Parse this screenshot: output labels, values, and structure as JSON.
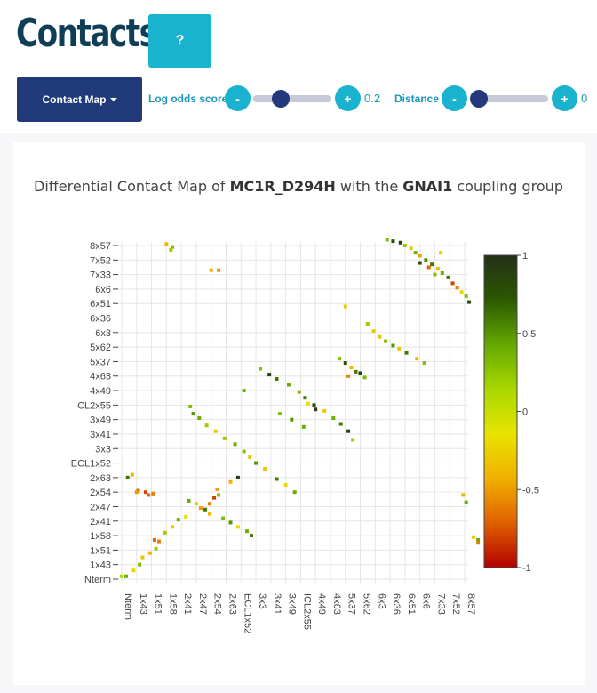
{
  "header": {
    "title": "Contacts",
    "help_label": "?"
  },
  "controls": {
    "dropdown_label": "Contact Map",
    "log_odds": {
      "label": "Log odds score",
      "minus": "-",
      "plus": "+",
      "value": "0.2",
      "fraction": 0.2
    },
    "distance": {
      "label": "Distance",
      "minus": "-",
      "plus": "+",
      "value": "0",
      "fraction": 0.0
    }
  },
  "subtitle": {
    "prefix": "Differential Contact Map of ",
    "receptor": "MC1R_D294H",
    "middle": " with the ",
    "group": "GNAI1",
    "suffix": " coupling group"
  },
  "chart_data": {
    "type": "heatmap",
    "x_labels": [
      "Nterm",
      "1x43",
      "1x51",
      "1x58",
      "2x41",
      "2x47",
      "2x54",
      "2x63",
      "ECL1x52",
      "3x3",
      "3x41",
      "3x49",
      "ICL2x55",
      "4x49",
      "4x63",
      "5x37",
      "5x62",
      "6x3",
      "6x36",
      "6x51",
      "6x6",
      "7x33",
      "7x52",
      "8x57"
    ],
    "y_labels": [
      "Nterm",
      "1x43",
      "1x51",
      "1x58",
      "2x41",
      "2x47",
      "2x54",
      "2x63",
      "ECL1x52",
      "3x3",
      "3x41",
      "3x49",
      "ICL2x55",
      "4x49",
      "4x63",
      "5x37",
      "5x62",
      "6x3",
      "6x36",
      "6x51",
      "6x6",
      "7x33",
      "7x52",
      "8x57"
    ],
    "colorscale": [
      "#b20000",
      "#e06000",
      "#f0b000",
      "#e8e400",
      "#a8d800",
      "#64a800",
      "#2c5800",
      "#243018"
    ],
    "zrange": [
      -1,
      1
    ],
    "colorbar_ticks": [
      "1",
      "0.5",
      "0",
      "-0.5",
      "-1"
    ],
    "cells": [
      [
        0.0,
        0.2,
        0.1
      ],
      [
        0.3,
        0.2,
        0.4
      ],
      [
        0.8,
        0.6,
        -0.2
      ],
      [
        1.2,
        1.0,
        0.3
      ],
      [
        1.4,
        1.5,
        -0.3
      ],
      [
        1.9,
        1.8,
        -0.4
      ],
      [
        2.3,
        2.1,
        0.2
      ],
      [
        2.2,
        2.7,
        -0.7
      ],
      [
        2.5,
        2.6,
        -0.6
      ],
      [
        2.9,
        3.2,
        0.2
      ],
      [
        3.4,
        3.6,
        -0.3
      ],
      [
        3.8,
        4.1,
        0.4
      ],
      [
        4.3,
        4.3,
        -0.2
      ],
      [
        5.3,
        4.9,
        -0.5
      ],
      [
        5.9,
        5.2,
        -0.6
      ],
      [
        6.2,
        5.6,
        -0.8
      ],
      [
        6.5,
        5.8,
        0.3
      ],
      [
        6.4,
        6.2,
        -0.5
      ],
      [
        7.3,
        6.7,
        -0.4
      ],
      [
        7.8,
        7.0,
        0.9
      ],
      [
        0.4,
        7.0,
        0.6
      ],
      [
        0.7,
        7.2,
        -0.4
      ],
      [
        1.1,
        6.1,
        -0.7
      ],
      [
        1.6,
        6.0,
        -0.8
      ],
      [
        2.1,
        5.9,
        -0.6
      ],
      [
        1.8,
        5.8,
        -0.7
      ],
      [
        1.0,
        6.0,
        -0.5
      ],
      [
        4.5,
        5.4,
        0.4
      ],
      [
        5.0,
        5.2,
        -0.3
      ],
      [
        5.6,
        4.8,
        0.6
      ],
      [
        5.9,
        4.5,
        -0.4
      ],
      [
        6.8,
        4.2,
        0.3
      ],
      [
        7.3,
        3.9,
        0.5
      ],
      [
        7.8,
        3.6,
        -0.2
      ],
      [
        8.4,
        3.3,
        0.4
      ],
      [
        8.7,
        3.0,
        0.6
      ],
      [
        4.6,
        11.9,
        0.3
      ],
      [
        4.8,
        11.4,
        0.5
      ],
      [
        5.2,
        11.1,
        0.4
      ],
      [
        5.7,
        10.6,
        0.2
      ],
      [
        6.3,
        10.2,
        -0.3
      ],
      [
        6.9,
        9.7,
        0.2
      ],
      [
        7.6,
        9.3,
        0.4
      ],
      [
        8.2,
        8.8,
        0.3
      ],
      [
        8.6,
        8.4,
        -0.3
      ],
      [
        9.0,
        8.0,
        0.5
      ],
      [
        9.6,
        7.6,
        -0.3
      ],
      [
        10.4,
        6.9,
        0.6
      ],
      [
        11.0,
        6.5,
        -0.2
      ],
      [
        11.6,
        6.0,
        0.4
      ],
      [
        9.3,
        14.5,
        0.3
      ],
      [
        9.9,
        14.1,
        0.9
      ],
      [
        10.4,
        13.8,
        0.6
      ],
      [
        11.2,
        13.4,
        0.4
      ],
      [
        11.9,
        12.9,
        0.3
      ],
      [
        12.3,
        12.5,
        0.6
      ],
      [
        12.9,
        12.0,
        0.8
      ],
      [
        13.6,
        11.6,
        -0.3
      ],
      [
        14.2,
        11.1,
        0.4
      ],
      [
        14.7,
        10.7,
        0.6
      ],
      [
        15.2,
        10.2,
        0.9
      ],
      [
        15.5,
        9.6,
        0.2
      ],
      [
        10.6,
        11.4,
        0.3
      ],
      [
        11.4,
        11.0,
        0.5
      ],
      [
        12.2,
        10.5,
        0.4
      ],
      [
        12.5,
        12.1,
        -0.2
      ],
      [
        13.0,
        11.7,
        0.9
      ],
      [
        14.6,
        15.2,
        0.3
      ],
      [
        15.0,
        14.9,
        0.8
      ],
      [
        15.4,
        14.6,
        -0.4
      ],
      [
        15.7,
        14.3,
        0.6
      ],
      [
        16.0,
        14.2,
        0.9
      ],
      [
        15.2,
        14.0,
        -0.6
      ],
      [
        16.3,
        13.9,
        0.3
      ],
      [
        16.5,
        17.6,
        0.2
      ],
      [
        16.9,
        17.1,
        -0.3
      ],
      [
        17.3,
        16.7,
        -0.3
      ],
      [
        17.7,
        16.4,
        0.3
      ],
      [
        18.2,
        16.1,
        0.5
      ],
      [
        18.6,
        15.9,
        -0.3
      ],
      [
        19.1,
        15.6,
        0.6
      ],
      [
        19.8,
        15.2,
        -0.4
      ],
      [
        20.3,
        14.9,
        0.3
      ],
      [
        17.8,
        23.4,
        0.3
      ],
      [
        18.2,
        23.3,
        0.8
      ],
      [
        18.7,
        23.2,
        0.9
      ],
      [
        19.0,
        23.0,
        0.2
      ],
      [
        19.4,
        22.8,
        -0.3
      ],
      [
        19.7,
        22.5,
        0.4
      ],
      [
        20.0,
        22.3,
        -0.5
      ],
      [
        20.4,
        22.0,
        0.5
      ],
      [
        20.8,
        21.7,
        0.6
      ],
      [
        21.2,
        21.4,
        -0.4
      ],
      [
        21.5,
        21.1,
        0.4
      ],
      [
        21.9,
        20.8,
        0.6
      ],
      [
        22.2,
        20.4,
        -0.8
      ],
      [
        22.5,
        20.1,
        -0.6
      ],
      [
        22.8,
        19.8,
        -0.2
      ],
      [
        23.1,
        19.5,
        0.3
      ],
      [
        23.3,
        19.1,
        0.8
      ],
      [
        21.4,
        22.5,
        -0.3
      ],
      [
        21.0,
        21.0,
        0.3
      ],
      [
        20.0,
        21.8,
        0.8
      ],
      [
        20.6,
        21.5,
        -0.7
      ],
      [
        22.9,
        5.8,
        -0.4
      ],
      [
        23.1,
        5.3,
        0.4
      ],
      [
        23.6,
        2.9,
        -0.3
      ],
      [
        23.9,
        2.7,
        0.4
      ],
      [
        23.9,
        2.5,
        -0.6
      ],
      [
        3.0,
        23.1,
        -0.4
      ],
      [
        3.4,
        22.9,
        0.3
      ],
      [
        6.0,
        21.3,
        -0.4
      ],
      [
        6.5,
        21.3,
        -0.5
      ],
      [
        15.0,
        18.8,
        -0.3
      ],
      [
        8.2,
        13.0,
        0.4
      ],
      [
        3.3,
        22.7,
        0.2
      ]
    ]
  }
}
